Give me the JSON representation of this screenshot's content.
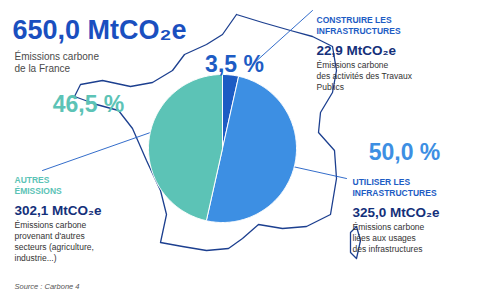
{
  "chart_data": {
    "type": "pie",
    "title": "650,0 MtCO₂e",
    "subtitle": [
      "Émissions carbone",
      "de la France"
    ],
    "categories": [
      "CONSTRUIRE LES INFRASTRUCTURES",
      "UTILISER LES INFRASTRUCTURES",
      "AUTRES ÉMISSIONS"
    ],
    "values": [
      3.5,
      50.0,
      46.5
    ],
    "value_labels": [
      "3,5 %",
      "50,0 %",
      "46,5 %"
    ],
    "colors": [
      "#1d5cc4",
      "#3d8fe3",
      "#5cc3b6"
    ],
    "data_labels": true,
    "annotations": [
      {
        "amount": "22,9 MtCO₂e",
        "text": [
          "Émissions carbone",
          "des activités des Travaux",
          "Publics"
        ]
      },
      {
        "amount": "325,0 MtCO₂e",
        "text": [
          "Émissions carbone",
          "liées aux usages",
          "des infrastructures"
        ]
      },
      {
        "amount": "302,1 MtCO₂e",
        "text": [
          "Émissions carbone",
          "provenant d'autres",
          "secteurs (agriculture,",
          "industrie...)"
        ]
      }
    ],
    "source": "Source : Carbone 4"
  }
}
